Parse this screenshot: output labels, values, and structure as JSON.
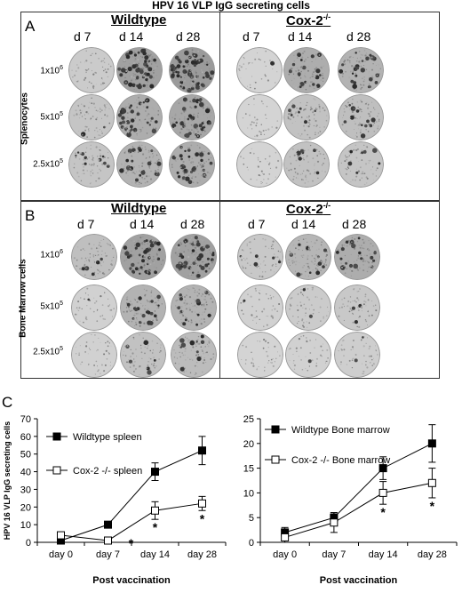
{
  "figure_title": "HPV 16 VLP IgG secreting cells",
  "panel_a": {
    "letter": "A",
    "side_label": "Splenocytes",
    "groups": [
      {
        "name": "Wildtype",
        "sup": ""
      },
      {
        "name": "Cox-2",
        "sup": "-/-"
      }
    ],
    "days": [
      "d 7",
      "d 14",
      "d 28"
    ],
    "rows": [
      {
        "base": "1x10",
        "exp": "6"
      },
      {
        "base": "5x10",
        "exp": "5"
      },
      {
        "base": "2.5x10",
        "exp": "5"
      }
    ]
  },
  "panel_b": {
    "letter": "B",
    "side_label": "Bone Marrow cells",
    "groups": [
      {
        "name": "Wildtype",
        "sup": ""
      },
      {
        "name": "Cox-2",
        "sup": "-/-"
      }
    ],
    "days": [
      "d 7",
      "d 14",
      "d 28"
    ],
    "rows": [
      {
        "base": "1x10",
        "exp": "6"
      },
      {
        "base": "5x10",
        "exp": "5"
      },
      {
        "base": "2.5x10",
        "exp": "5"
      }
    ]
  },
  "panel_c": {
    "letter": "C"
  },
  "chart_data": [
    {
      "type": "line",
      "ylabel": "HPV 16 VLP IgG secreting cells",
      "xlabel": "Post vaccination",
      "categories": [
        "day 0",
        "day 7",
        "day 14",
        "day 28"
      ],
      "ylim": [
        0,
        70
      ],
      "yticks": [
        0,
        10,
        20,
        30,
        40,
        50,
        60,
        70
      ],
      "series": [
        {
          "name": "Wildtype  spleen",
          "marker": "filled-square",
          "values": [
            1,
            10,
            40,
            52
          ],
          "errors": [
            1,
            1,
            5,
            8
          ]
        },
        {
          "name": "Cox-2 -/- spleen",
          "marker": "open-square",
          "values": [
            4,
            1,
            18,
            22
          ],
          "errors": [
            1,
            1,
            5,
            4
          ]
        }
      ],
      "significance_label": "*",
      "significant_indices": [
        1,
        2,
        3
      ]
    },
    {
      "type": "line",
      "ylabel": "",
      "xlabel": "Post vaccination",
      "categories": [
        "day 0",
        "day 7",
        "day 14",
        "day 28"
      ],
      "ylim": [
        0,
        25
      ],
      "yticks": [
        0,
        5,
        10,
        15,
        20,
        25
      ],
      "series": [
        {
          "name": "Wildtype Bone marrow",
          "marker": "filled-square",
          "values": [
            2,
            5,
            15,
            20
          ],
          "errors": [
            1,
            1,
            2.3,
            3.8
          ]
        },
        {
          "name": "Cox-2 -/- Bone marrow",
          "marker": "open-square",
          "values": [
            1,
            4,
            10,
            12
          ],
          "errors": [
            1,
            2,
            2.3,
            3
          ]
        }
      ],
      "significance_label": "*",
      "significant_indices": [
        2,
        3
      ]
    }
  ]
}
